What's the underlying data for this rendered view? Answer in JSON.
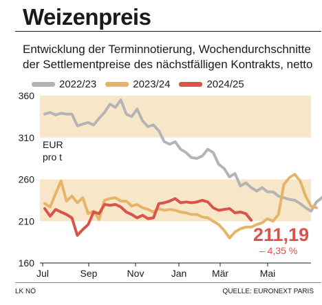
{
  "header": {
    "title": "Weizenpreis",
    "subtitle": "Entwicklung der Terminnotierung, Wochendurchschnitte der Settlementpreise des nächstfälligen Kontrakts, netto"
  },
  "footer": {
    "left": "LK NÖ",
    "right": "QUELLE: EURONEXT PARIS"
  },
  "chart_data": {
    "type": "line",
    "unit_label_1": "EUR",
    "unit_label_2": "pro t",
    "ylim": [
      160,
      360
    ],
    "y_ticks": [
      "160",
      "210",
      "260",
      "310",
      "360"
    ],
    "x_ticks": [
      "Jul",
      "Sep",
      "Nov",
      "Jan",
      "Mär",
      "Mai"
    ],
    "shaded_bands": [
      [
        310,
        360
      ],
      [
        210,
        260
      ]
    ],
    "last_value": "211,19",
    "last_change": "– 4,35 %",
    "colors": {
      "grid": "#f8e6c9",
      "s1": "#b4b4b4",
      "s2": "#e6b468",
      "s3": "#d9534a"
    },
    "series": [
      {
        "name": "2022/23",
        "values": [
          338,
          340,
          337,
          339,
          338,
          338,
          324,
          326,
          328,
          325,
          333,
          340,
          350,
          346,
          355,
          338,
          335,
          344,
          330,
          323,
          325,
          318,
          305,
          302,
          305,
          296,
          292,
          286,
          285,
          288,
          296,
          292,
          278,
          273,
          263,
          267,
          252,
          256,
          250,
          246,
          250,
          245,
          245,
          240,
          238,
          236,
          235,
          231,
          226,
          222,
          233,
          238,
          245,
          236
        ]
      },
      {
        "name": "2023/24",
        "values": [
          231,
          227,
          243,
          258,
          234,
          240,
          232,
          238,
          219,
          222,
          212,
          235,
          237,
          238,
          234,
          234,
          228,
          230,
          226,
          224,
          221,
          225,
          223,
          224,
          223,
          221,
          220,
          218,
          218,
          215,
          214,
          210,
          206,
          199,
          190,
          197,
          201,
          203,
          203,
          206,
          208,
          213,
          210,
          218,
          254,
          262,
          266,
          258,
          240,
          228,
          226
        ]
      },
      {
        "name": "2024/25",
        "values": [
          225,
          216,
          224,
          221,
          218,
          214,
          193,
          200,
          206,
          221,
          219,
          230,
          229,
          230,
          227,
          221,
          218,
          214,
          217,
          213,
          214,
          231,
          232,
          234,
          237,
          232,
          233,
          232,
          233,
          235,
          233,
          226,
          223,
          224,
          225,
          220,
          221,
          219,
          211
        ]
      }
    ]
  }
}
